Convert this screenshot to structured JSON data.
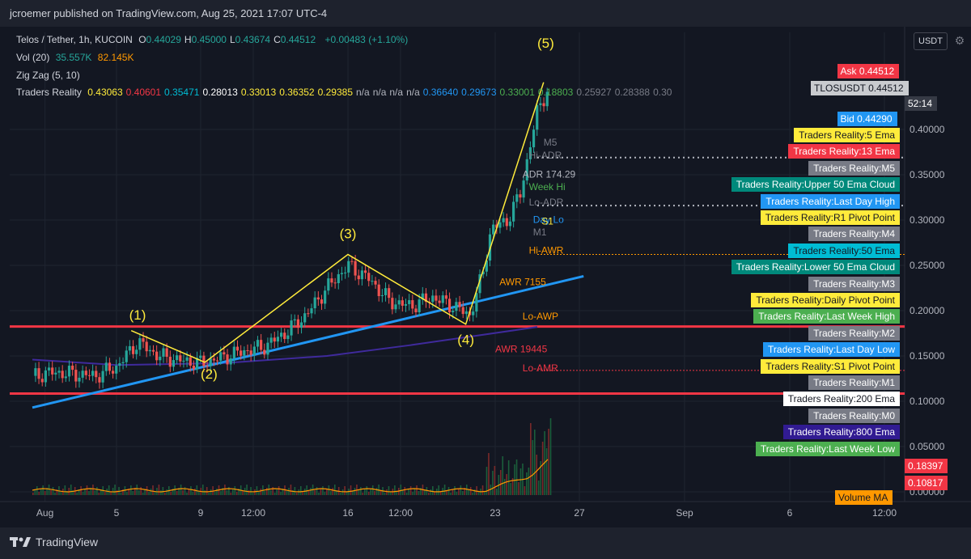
{
  "header": {
    "publisher": "jcroemer published on TradingView.com, Aug 25, 2021 17:07 UTC-4"
  },
  "legend": {
    "symbol": "Telos / Tether, 1h, KUCOIN",
    "ohlc": [
      {
        "k": "O",
        "v": "0.44029"
      },
      {
        "k": "H",
        "v": "0.45000"
      },
      {
        "k": "L",
        "v": "0.43674"
      },
      {
        "k": "C",
        "v": "0.44512"
      }
    ],
    "change": "+0.00483 (+1.10%)",
    "vol_label": "Vol (20)",
    "vol_v1": "35.557K",
    "vol_v2": "82.145K",
    "zigzag": "Zig Zag (5, 10)",
    "tr_label": "Traders Reality",
    "tr_values": [
      {
        "v": "0.43063",
        "c": "#ffeb3b"
      },
      {
        "v": "0.40601",
        "c": "#f23645"
      },
      {
        "v": "0.35471",
        "c": "#00bcd4"
      },
      {
        "v": "0.28013",
        "c": "#ffffff"
      },
      {
        "v": "0.33013",
        "c": "#ffeb3b"
      },
      {
        "v": "0.36352",
        "c": "#ffeb3b"
      },
      {
        "v": "0.29385",
        "c": "#ffeb3b"
      },
      {
        "v": "n/a",
        "c": "#b2b5be"
      },
      {
        "v": "n/a",
        "c": "#b2b5be"
      },
      {
        "v": "n/a",
        "c": "#b2b5be"
      },
      {
        "v": "n/a",
        "c": "#b2b5be"
      },
      {
        "v": "0.36640",
        "c": "#2196f3"
      },
      {
        "v": "0.29673",
        "c": "#2196f3"
      },
      {
        "v": "0.33001",
        "c": "#4caf50"
      },
      {
        "v": "0.18803",
        "c": "#4caf50"
      },
      {
        "v": "0.25927",
        "c": "#787b86"
      },
      {
        "v": "0.28388",
        "c": "#787b86"
      },
      {
        "v": "0.30",
        "c": "#787b86"
      }
    ]
  },
  "toolbar": {
    "currency": "USDT"
  },
  "brand": {
    "name": "TradingView"
  },
  "chart_data": {
    "type": "candlestick",
    "symbol": "TLOSUSDT",
    "timeframe": "1h",
    "x_ticks": [
      {
        "label": "Aug",
        "day": 0.6
      },
      {
        "label": "5",
        "day": 4.0
      },
      {
        "label": "9",
        "day": 8.0
      },
      {
        "label": "12:00",
        "day": 10.5
      },
      {
        "label": "16",
        "day": 15.0
      },
      {
        "label": "12:00",
        "day": 17.5
      },
      {
        "label": "23",
        "day": 22.0
      },
      {
        "label": "27",
        "day": 26.0
      },
      {
        "label": "Sep",
        "day": 31.0
      },
      {
        "label": "6",
        "day": 36.0
      },
      {
        "label": "12:00",
        "day": 40.5
      }
    ],
    "y_ticks": [
      "0.40000",
      "0.35000",
      "0.30000",
      "0.25000",
      "0.20000",
      "0.15000",
      "0.10000",
      "0.05000",
      "0.00000"
    ],
    "ylim": [
      0.0,
      0.45
    ],
    "close_path": [
      [
        0.0,
        0.128
      ],
      [
        1,
        0.132
      ],
      [
        2,
        0.13
      ],
      [
        3,
        0.128
      ],
      [
        4,
        0.138
      ],
      [
        5,
        0.165
      ],
      [
        6,
        0.15
      ],
      [
        7,
        0.145
      ],
      [
        8,
        0.142
      ],
      [
        9,
        0.148
      ],
      [
        10,
        0.155
      ],
      [
        11,
        0.16
      ],
      [
        12,
        0.175
      ],
      [
        13,
        0.195
      ],
      [
        14,
        0.225
      ],
      [
        15,
        0.25
      ],
      [
        16,
        0.235
      ],
      [
        17,
        0.21
      ],
      [
        18,
        0.205
      ],
      [
        19,
        0.215
      ],
      [
        20,
        0.205
      ],
      [
        20.8,
        0.195
      ],
      [
        21.4,
        0.24
      ],
      [
        21.8,
        0.29
      ],
      [
        22.6,
        0.3
      ],
      [
        23.2,
        0.33
      ],
      [
        24.0,
        0.42
      ],
      [
        24.5,
        0.445
      ]
    ],
    "zigzag": [
      [
        4.7,
        0.178
      ],
      [
        8.2,
        0.143
      ],
      [
        15.0,
        0.262
      ],
      [
        20.6,
        0.185
      ],
      [
        24.3,
        0.452
      ]
    ],
    "wave_labels": [
      {
        "label": "(1)",
        "day": 5.0,
        "price": 0.19
      },
      {
        "label": "(2)",
        "day": 8.4,
        "price": 0.125
      },
      {
        "label": "(3)",
        "day": 15.0,
        "price": 0.28
      },
      {
        "label": "(4)",
        "day": 20.6,
        "price": 0.163
      },
      {
        "label": "(5)",
        "day": 24.4,
        "price": 0.49
      }
    ],
    "ema_200_line": [
      [
        0,
        0.093
      ],
      [
        26.2,
        0.238
      ]
    ],
    "ema_800_line": [
      [
        0,
        0.146
      ],
      [
        4,
        0.14
      ],
      [
        9,
        0.142
      ],
      [
        14,
        0.15
      ],
      [
        18,
        0.162
      ],
      [
        21,
        0.172
      ],
      [
        24,
        0.182
      ]
    ],
    "h_lines": [
      {
        "price": 0.1825,
        "color": "#f23645"
      },
      {
        "price": 0.1085,
        "color": "#f23645"
      }
    ],
    "chart_labels": [
      {
        "text": "Hi-ADR",
        "day": 23.6,
        "price": 0.368,
        "color": "#787b86"
      },
      {
        "text": "ADR 174.29",
        "day": 23.3,
        "price": 0.347,
        "color": "#b2b5be"
      },
      {
        "text": "Week Hi",
        "day": 23.6,
        "price": 0.333,
        "color": "#4caf50"
      },
      {
        "text": "Lo-ADR",
        "day": 23.6,
        "price": 0.316,
        "color": "#787b86"
      },
      {
        "text": "Day Lo",
        "day": 23.8,
        "price": 0.297,
        "color": "#2196f3"
      },
      {
        "text": "S1",
        "day": 24.2,
        "price": 0.295,
        "color": "#ffeb3b"
      },
      {
        "text": "M1",
        "day": 23.8,
        "price": 0.283,
        "color": "#787b86"
      },
      {
        "text": "Hi-AWR",
        "day": 23.6,
        "price": 0.263,
        "color": "#ff9800"
      },
      {
        "text": "AWR 7155",
        "day": 22.2,
        "price": 0.228,
        "color": "#ff9800"
      },
      {
        "text": "Lo-AWP",
        "day": 23.3,
        "price": 0.19,
        "color": "#ff9800"
      },
      {
        "text": "AWR 19445",
        "day": 22.0,
        "price": 0.154,
        "color": "#f23645"
      },
      {
        "text": "Lo-AMR",
        "day": 23.3,
        "price": 0.133,
        "color": "#f23645"
      },
      {
        "text": "M5",
        "day": 24.3,
        "price": 0.382,
        "color": "#787b86"
      }
    ],
    "price_tags": [
      {
        "text": "Ask",
        "value": "0.44512",
        "bg": "#f23645"
      },
      {
        "text": "TLOSUSDT",
        "value": "0.44512",
        "bg": "#c9cbcf"
      },
      {
        "text": "",
        "value": "52:14",
        "bg": "#363a45"
      },
      {
        "text": "Bid",
        "value": "0.44290",
        "bg": "#2196f3"
      },
      {
        "text": "",
        "value": "0.18397",
        "bg": "#f23645"
      },
      {
        "text": "",
        "value": "0.10817",
        "bg": "#f23645"
      },
      {
        "text": "Volume MA",
        "value": "",
        "bg": "#ff9800"
      }
    ],
    "indicator_labels": [
      {
        "text": "Traders Reality:5 Ema",
        "bg": "#ffeb3b",
        "fg": "#131722"
      },
      {
        "text": "Traders Reality:13 Ema",
        "bg": "#f23645",
        "fg": "#ffffff"
      },
      {
        "text": "Traders Reality:M5",
        "bg": "#787b86",
        "fg": "#ffffff"
      },
      {
        "text": "Traders Reality:Upper 50 Ema Cloud",
        "bg": "#00897b",
        "fg": "#ffffff"
      },
      {
        "text": "Traders Reality:Last Day High",
        "bg": "#2196f3",
        "fg": "#ffffff"
      },
      {
        "text": "Traders Reality:R1 Pivot Point",
        "bg": "#ffeb3b",
        "fg": "#131722"
      },
      {
        "text": "Traders Reality:M4",
        "bg": "#787b86",
        "fg": "#ffffff"
      },
      {
        "text": "Traders Reality:50 Ema",
        "bg": "#00bcd4",
        "fg": "#131722"
      },
      {
        "text": "Traders Reality:Lower 50 Ema Cloud",
        "bg": "#00897b",
        "fg": "#ffffff"
      },
      {
        "text": "Traders Reality:M3",
        "bg": "#787b86",
        "fg": "#ffffff"
      },
      {
        "text": "Traders Reality:Daily Pivot Point",
        "bg": "#ffeb3b",
        "fg": "#131722"
      },
      {
        "text": "Traders Reality:Last Week High",
        "bg": "#4caf50",
        "fg": "#ffffff"
      },
      {
        "text": "Traders Reality:M2",
        "bg": "#787b86",
        "fg": "#ffffff"
      },
      {
        "text": "Traders Reality:Last Day Low",
        "bg": "#2196f3",
        "fg": "#ffffff"
      },
      {
        "text": "Traders Reality:S1 Pivot Point",
        "bg": "#ffeb3b",
        "fg": "#131722"
      },
      {
        "text": "Traders Reality:M1",
        "bg": "#787b86",
        "fg": "#ffffff"
      },
      {
        "text": "Traders Reality:200 Ema",
        "bg": "#ffffff",
        "fg": "#131722"
      },
      {
        "text": "Traders Reality:M0",
        "bg": "#787b86",
        "fg": "#ffffff"
      },
      {
        "text": "Traders Reality:800 Ema",
        "bg": "#311b92",
        "fg": "#ffffff"
      },
      {
        "text": "Traders Reality:Last Week Low",
        "bg": "#4caf50",
        "fg": "#ffffff"
      }
    ],
    "colors": {
      "background": "#131722",
      "up": "#26a69a",
      "down": "#ef5350",
      "zigzag": "#ffeb3b",
      "ema200": "#2196f3",
      "ema800": "#3f2a9c"
    }
  }
}
